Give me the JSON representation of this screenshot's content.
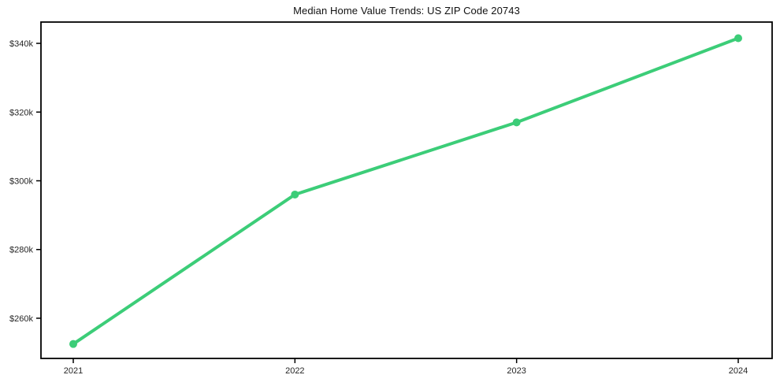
{
  "chart_data": {
    "type": "line",
    "title": "Median Home Value Trends: US ZIP Code 20743",
    "x": [
      2021,
      2022,
      2023,
      2024
    ],
    "x_tick_labels": [
      "2021",
      "2022",
      "2023",
      "2024"
    ],
    "series": [
      {
        "name": "Median Home Value",
        "values": [
          252500,
          296000,
          317000,
          341500
        ]
      }
    ],
    "y_ticks": [
      260000,
      280000,
      300000,
      320000,
      340000
    ],
    "y_tick_labels": [
      "$260k",
      "$280k",
      "$300k",
      "$320k",
      "$340k"
    ],
    "ylim": [
      248300,
      346200
    ],
    "xlabel": "",
    "ylabel": "",
    "grid": false,
    "legend_position": "none",
    "line_color": "#3ccd78",
    "marker_color": "#3ccd78",
    "spine_color": "#000000",
    "tick_label_color": "#262626",
    "background_color": "#ffffff"
  }
}
